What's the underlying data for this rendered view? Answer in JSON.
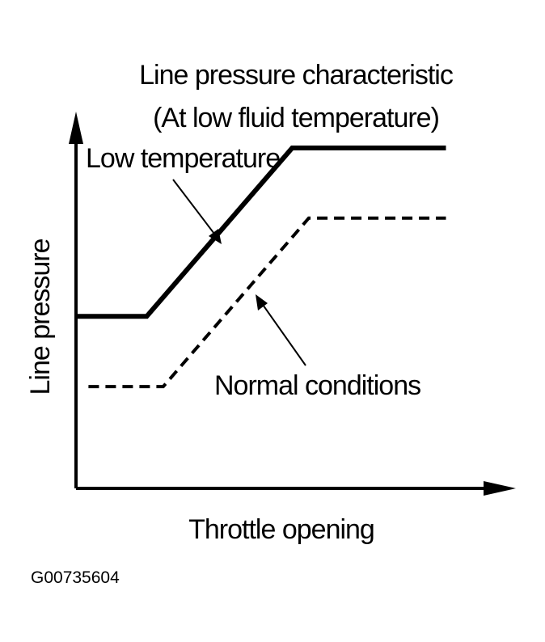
{
  "figure_code": "G00735604",
  "chart_data": {
    "type": "line",
    "title": "Line pressure characteristic",
    "subtitle": "(At low fluid temperature)",
    "xlabel": "Throttle opening",
    "ylabel": "Line pressure",
    "xlim": [
      0,
      100
    ],
    "ylim": [
      0,
      100
    ],
    "grid": false,
    "legend": "none",
    "series": [
      {
        "name": "Low temperature",
        "style": "solid",
        "color": "#000000",
        "x": [
          0,
          17,
          52,
          89
        ],
        "y": [
          49,
          49,
          97,
          97
        ]
      },
      {
        "name": "Normal conditions",
        "style": "dashed",
        "color": "#000000",
        "x": [
          3,
          21,
          56,
          89
        ],
        "y": [
          29,
          29,
          77,
          77
        ]
      }
    ]
  }
}
